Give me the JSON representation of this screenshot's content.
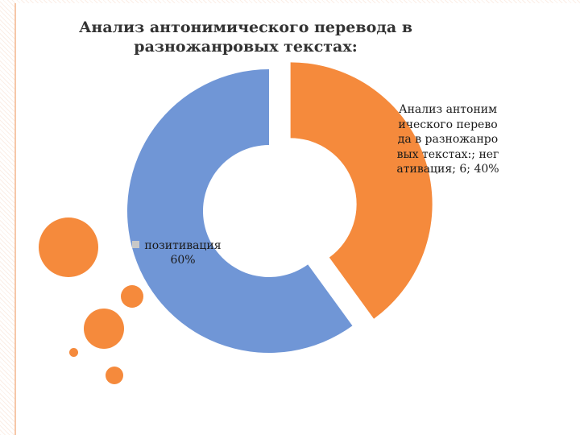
{
  "chart_data": {
    "type": "pie",
    "title": "Анализ антонимического перевода в разножанровых текстах:",
    "slices": [
      {
        "name": "позитивация",
        "value": 9,
        "percent": 60,
        "color": "#7096d6"
      },
      {
        "name": "негативация",
        "value": 6,
        "percent": 40,
        "color": "#f58a3c"
      }
    ],
    "labels": {
      "positive": "позитивация\n60%",
      "negative": "Анализ антонимического перевода в разножанровых текстах:; негативация; 6; 40%"
    }
  },
  "theme": {
    "accent": "#f58a3c",
    "secondary": "#7096d6",
    "stripe": "#fbeee6",
    "line": "#f6c7a8"
  }
}
